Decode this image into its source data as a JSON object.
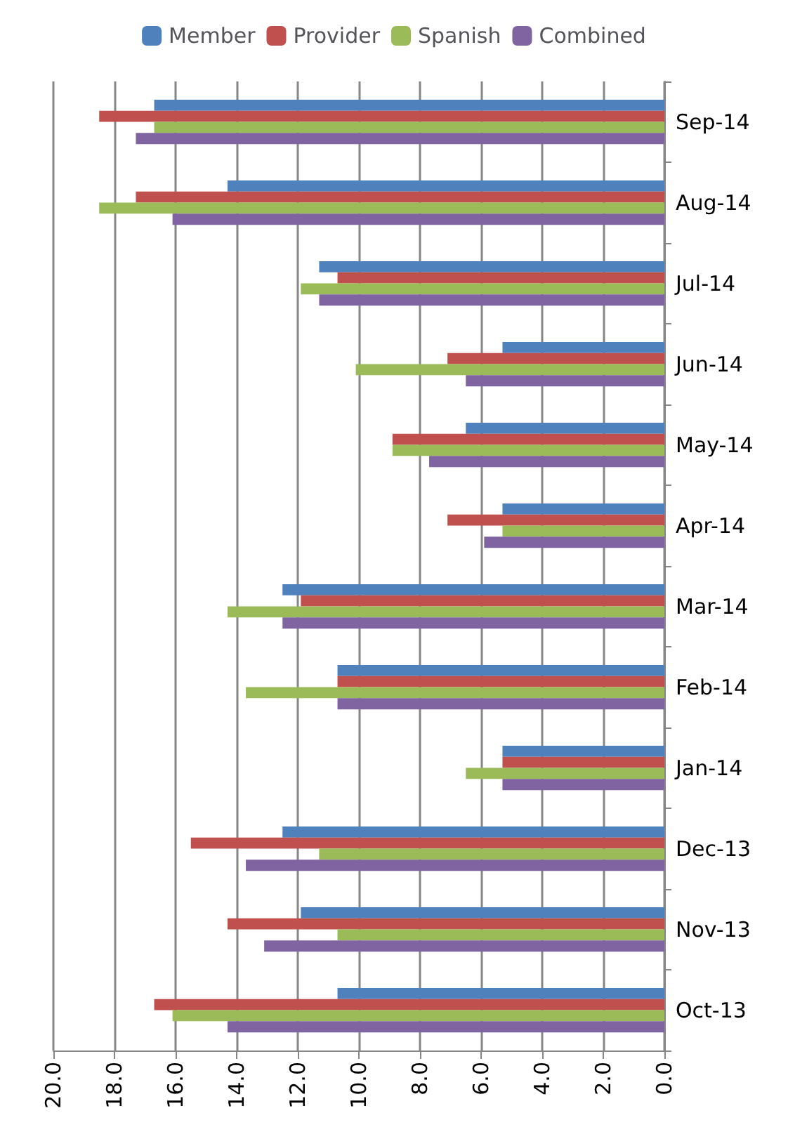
{
  "chart_data": {
    "type": "bar",
    "orientation": "horizontal",
    "categories": [
      "Sep-14",
      "Aug-14",
      "Jul-14",
      "Jun-14",
      "May-14",
      "Apr-14",
      "Mar-14",
      "Feb-14",
      "Jan-14",
      "Dec-13",
      "Nov-13",
      "Oct-13"
    ],
    "series": [
      {
        "name": "Member",
        "color": "#4f81bd",
        "values": [
          16.7,
          14.3,
          11.3,
          5.3,
          6.5,
          5.3,
          12.5,
          10.7,
          5.3,
          12.5,
          11.9,
          10.7
        ]
      },
      {
        "name": "Provider",
        "color": "#c0504d",
        "values": [
          18.5,
          17.3,
          10.7,
          7.1,
          8.9,
          7.1,
          11.9,
          10.7,
          5.3,
          15.5,
          14.3,
          16.7
        ]
      },
      {
        "name": "Spanish",
        "color": "#9bbb59",
        "values": [
          16.7,
          18.5,
          11.9,
          10.1,
          8.9,
          5.3,
          14.3,
          13.7,
          6.5,
          11.3,
          10.7,
          16.1
        ]
      },
      {
        "name": "Combined",
        "color": "#8064a2",
        "values": [
          17.3,
          16.1,
          11.3,
          6.5,
          7.7,
          5.9,
          12.5,
          10.7,
          5.3,
          13.7,
          13.1,
          14.3
        ]
      }
    ],
    "xlim": [
      20,
      0
    ],
    "xticks": [
      {
        "value": 20,
        "label": "20.0"
      },
      {
        "value": 18,
        "label": "18.0"
      },
      {
        "value": 16,
        "label": "16.0"
      },
      {
        "value": 14,
        "label": "14.0"
      },
      {
        "value": 12,
        "label": "12.0"
      },
      {
        "value": 10,
        "label": "10.0"
      },
      {
        "value": 8,
        "label": "8.0"
      },
      {
        "value": 6,
        "label": "6.0"
      },
      {
        "value": 4,
        "label": "4.0"
      },
      {
        "value": 2,
        "label": "2.0"
      },
      {
        "value": 0,
        "label": "0.0"
      }
    ],
    "grid": "x",
    "legend": "top"
  }
}
